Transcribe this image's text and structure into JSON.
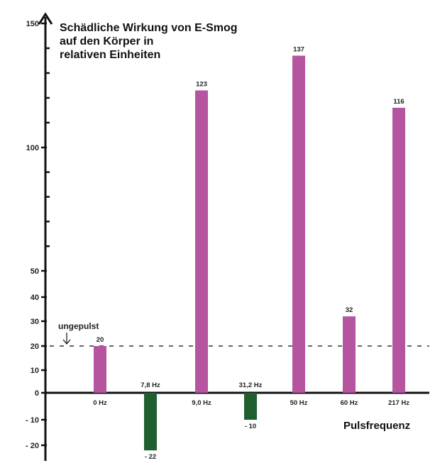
{
  "chart_data": {
    "type": "bar",
    "title_lines": [
      "Schädliche Wirkung von E-Smog",
      "auf den Körper in",
      "relativen Einheiten"
    ],
    "xlabel": "Pulsfrequenz",
    "ylabel": "",
    "ylim": [
      -25,
      150
    ],
    "y_ticks_labeled": [
      150,
      100,
      50,
      40,
      30,
      20,
      10,
      0,
      -10,
      -20
    ],
    "y_ticks_labels": [
      "150",
      "100",
      "50",
      "40",
      "30",
      "20",
      "10",
      "0",
      "- 10",
      "- 20"
    ],
    "y_minor_ticks": [
      140,
      130,
      120,
      110,
      90,
      80,
      70,
      60
    ],
    "categories": [
      "0 Hz",
      "7,8 Hz",
      "9,0 Hz",
      "31,2 Hz",
      "50 Hz",
      "60 Hz",
      "217 Hz"
    ],
    "values": [
      20,
      -22,
      123,
      -10,
      137,
      32,
      116
    ],
    "value_labels": [
      "20",
      "- 22",
      "123",
      "- 10",
      "137",
      "32",
      "116"
    ],
    "reference_line": {
      "value": 20,
      "label": "ungepulst"
    },
    "colors": {
      "positive": "#b5559f",
      "negative": "#1f5e2f",
      "axis": "#111111",
      "reference": "#333333"
    },
    "grid": false,
    "legend": "none"
  }
}
